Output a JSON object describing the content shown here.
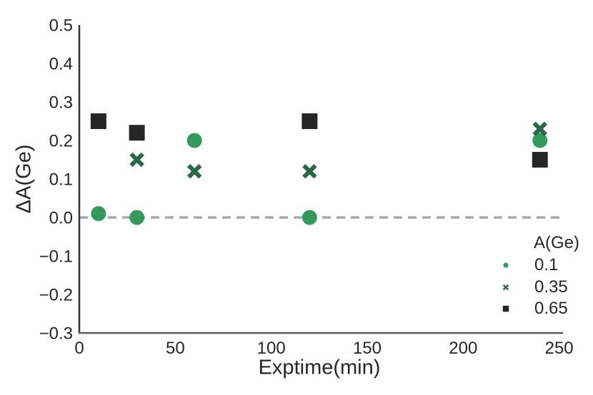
{
  "chart_data": {
    "type": "scatter",
    "title": "",
    "xlabel": "Exptime(min)",
    "ylabel": "ΔA(Ge)",
    "xlim": [
      0,
      252
    ],
    "ylim": [
      -0.3,
      0.5
    ],
    "x_ticks": [
      0,
      50,
      100,
      150,
      200,
      250
    ],
    "x_tick_labels": [
      "0",
      "50",
      "100",
      "150",
      "200",
      "250"
    ],
    "y_ticks": [
      -0.3,
      -0.2,
      -0.1,
      0,
      0.1,
      0.2,
      0.3,
      0.4,
      0.5
    ],
    "y_tick_labels": [
      "−0.3",
      "−0.2",
      "−0.1",
      "0.0",
      "0.1",
      "0.2",
      "0.3",
      "0.4",
      "0.5"
    ],
    "grid": false,
    "legend_position": "lower right",
    "reference_line": {
      "y": 0,
      "style": "dashed",
      "color": "#a8a8a8"
    },
    "colors": {
      "text": "#262626",
      "y_spine": "#333333",
      "x_spine": "#5b5b5b"
    },
    "legend": {
      "title": "A(Ge)"
    },
    "series": [
      {
        "name": "0.1",
        "marker": "circle",
        "color": "#33995c",
        "points": [
          [
            10,
            0.01
          ],
          [
            30,
            0.0
          ],
          [
            60,
            0.2
          ],
          [
            120,
            0.0
          ],
          [
            240,
            0.2
          ]
        ]
      },
      {
        "name": "0.35",
        "marker": "x",
        "color": "#2b684a",
        "points": [
          [
            30,
            0.15
          ],
          [
            60,
            0.12
          ],
          [
            120,
            0.12
          ],
          [
            240,
            0.23
          ]
        ]
      },
      {
        "name": "0.65",
        "marker": "square",
        "color": "#262626",
        "points": [
          [
            10,
            0.25
          ],
          [
            30,
            0.22
          ],
          [
            120,
            0.25
          ],
          [
            240,
            0.15
          ]
        ]
      }
    ]
  }
}
